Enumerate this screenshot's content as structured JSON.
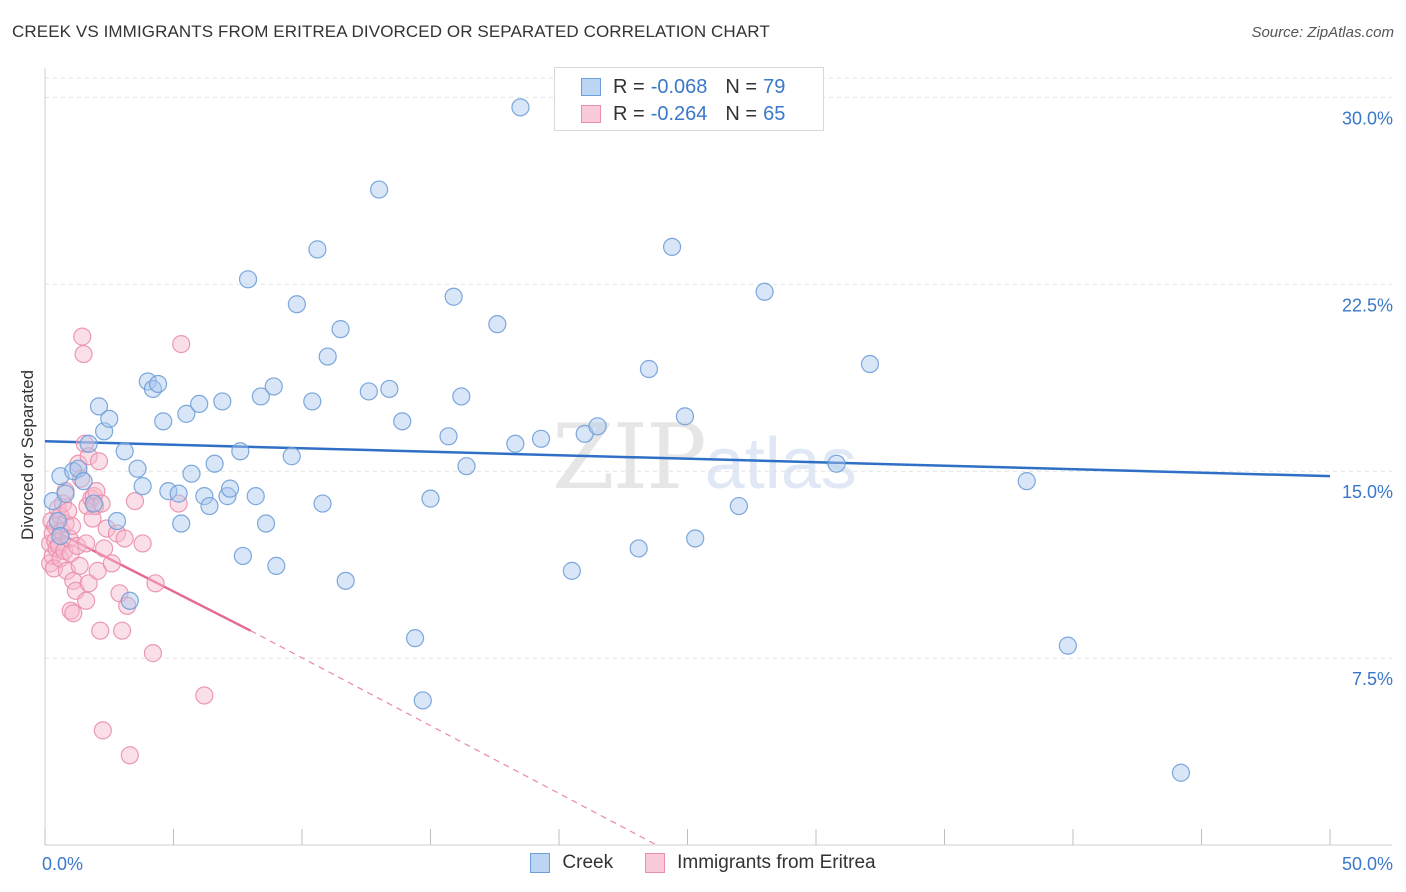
{
  "title": "CREEK VS IMMIGRANTS FROM ERITREA DIVORCED OR SEPARATED CORRELATION CHART",
  "source": "Source: ZipAtlas.com",
  "watermark": {
    "zip": "ZIP",
    "atlas": "atlas"
  },
  "legend": {
    "rows": [
      {
        "r_label": "R =",
        "r_value": "-0.068",
        "n_label": "N =",
        "n_value": "79"
      },
      {
        "r_label": "R =",
        "r_value": "-0.264",
        "n_label": "N =",
        "n_value": "65"
      }
    ]
  },
  "colors": {
    "creek_fill": "#a9c8ee",
    "creek_stroke": "#6f9fd8",
    "creek_line": "#2f6fc6",
    "eritrea_fill": "#f6b9cc",
    "eritrea_stroke": "#ea8fac",
    "eritrea_line": "#e46a93",
    "axis_text": "#3a78c9",
    "grid": "#e2e2e2"
  },
  "chart_data": {
    "type": "scatter",
    "title": "CREEK VS IMMIGRANTS FROM ERITREA DIVORCED OR SEPARATED CORRELATION CHART",
    "xlabel": "",
    "ylabel": "Divorced or Separated",
    "xlim": [
      0,
      50
    ],
    "ylim": [
      0,
      31.5
    ],
    "x_tick_labels": [
      "0.0%",
      "50.0%"
    ],
    "y_ticks": [
      7.5,
      15.0,
      22.5,
      30.0
    ],
    "y_tick_labels": [
      "7.5%",
      "15.0%",
      "22.5%",
      "30.0%"
    ],
    "legend_position": "bottom-center",
    "series": [
      {
        "name": "Creek",
        "r": -0.068,
        "n": 79,
        "trend": {
          "x0": 0,
          "y0": 16.2,
          "x1": 50,
          "y1": 14.8
        },
        "points": [
          [
            0.3,
            13.8
          ],
          [
            0.5,
            13.0
          ],
          [
            0.6,
            12.4
          ],
          [
            0.6,
            14.8
          ],
          [
            0.8,
            14.1
          ],
          [
            1.1,
            15.0
          ],
          [
            1.3,
            15.1
          ],
          [
            1.5,
            14.6
          ],
          [
            1.7,
            16.1
          ],
          [
            1.9,
            13.7
          ],
          [
            2.1,
            17.6
          ],
          [
            2.3,
            16.6
          ],
          [
            2.5,
            17.1
          ],
          [
            2.8,
            13.0
          ],
          [
            3.1,
            15.8
          ],
          [
            3.3,
            9.8
          ],
          [
            3.6,
            15.1
          ],
          [
            3.8,
            14.4
          ],
          [
            4.0,
            18.6
          ],
          [
            4.2,
            18.3
          ],
          [
            4.4,
            18.5
          ],
          [
            4.6,
            17.0
          ],
          [
            4.8,
            14.2
          ],
          [
            5.2,
            14.1
          ],
          [
            5.3,
            12.9
          ],
          [
            5.5,
            17.3
          ],
          [
            5.7,
            14.9
          ],
          [
            6.0,
            17.7
          ],
          [
            6.2,
            14.0
          ],
          [
            6.4,
            13.6
          ],
          [
            6.6,
            15.3
          ],
          [
            6.9,
            17.8
          ],
          [
            7.1,
            14.0
          ],
          [
            7.2,
            14.3
          ],
          [
            7.6,
            15.8
          ],
          [
            7.7,
            11.6
          ],
          [
            7.9,
            22.7
          ],
          [
            8.2,
            14.0
          ],
          [
            8.4,
            18.0
          ],
          [
            8.6,
            12.9
          ],
          [
            8.9,
            18.4
          ],
          [
            9.0,
            11.2
          ],
          [
            9.6,
            15.6
          ],
          [
            9.8,
            21.7
          ],
          [
            10.4,
            17.8
          ],
          [
            10.6,
            23.9
          ],
          [
            10.8,
            13.7
          ],
          [
            11.0,
            19.6
          ],
          [
            11.5,
            20.7
          ],
          [
            11.7,
            10.6
          ],
          [
            12.6,
            18.2
          ],
          [
            13.0,
            26.3
          ],
          [
            13.4,
            18.3
          ],
          [
            13.9,
            17.0
          ],
          [
            14.4,
            8.3
          ],
          [
            14.7,
            5.8
          ],
          [
            15.0,
            13.9
          ],
          [
            15.7,
            16.4
          ],
          [
            15.9,
            22.0
          ],
          [
            16.2,
            18.0
          ],
          [
            16.4,
            15.2
          ],
          [
            17.6,
            20.9
          ],
          [
            18.3,
            16.1
          ],
          [
            18.5,
            29.6
          ],
          [
            19.3,
            16.3
          ],
          [
            20.5,
            11.0
          ],
          [
            21.0,
            16.5
          ],
          [
            21.5,
            16.8
          ],
          [
            23.1,
            11.9
          ],
          [
            23.5,
            19.1
          ],
          [
            24.4,
            24.0
          ],
          [
            24.9,
            17.2
          ],
          [
            25.3,
            12.3
          ],
          [
            27.0,
            13.6
          ],
          [
            28.0,
            22.2
          ],
          [
            30.8,
            15.3
          ],
          [
            32.1,
            19.3
          ],
          [
            38.2,
            14.6
          ],
          [
            39.8,
            8.0
          ],
          [
            44.2,
            2.9
          ]
        ]
      },
      {
        "name": "Immigrants from Eritrea",
        "r": -0.264,
        "n": 65,
        "trend": {
          "x0": 0,
          "y0": 12.8,
          "x1": 8.0,
          "y1": 8.6,
          "dash_x1": 23.8,
          "dash_y1": 0
        },
        "points": [
          [
            0.2,
            11.3
          ],
          [
            0.2,
            12.1
          ],
          [
            0.25,
            13.0
          ],
          [
            0.3,
            11.6
          ],
          [
            0.3,
            12.5
          ],
          [
            0.35,
            11.1
          ],
          [
            0.4,
            12.2
          ],
          [
            0.4,
            12.8
          ],
          [
            0.45,
            11.9
          ],
          [
            0.5,
            13.5
          ],
          [
            0.55,
            12.0
          ],
          [
            0.6,
            11.5
          ],
          [
            0.6,
            13.2
          ],
          [
            0.65,
            12.6
          ],
          [
            0.7,
            13.7
          ],
          [
            0.75,
            11.8
          ],
          [
            0.8,
            12.9
          ],
          [
            0.8,
            14.2
          ],
          [
            0.85,
            11.0
          ],
          [
            0.9,
            13.4
          ],
          [
            0.95,
            12.3
          ],
          [
            1.0,
            9.4
          ],
          [
            1.0,
            11.7
          ],
          [
            1.05,
            12.8
          ],
          [
            1.1,
            10.6
          ],
          [
            1.1,
            9.3
          ],
          [
            1.2,
            10.2
          ],
          [
            1.25,
            12.0
          ],
          [
            1.3,
            15.3
          ],
          [
            1.35,
            11.2
          ],
          [
            1.4,
            14.7
          ],
          [
            1.45,
            20.4
          ],
          [
            1.5,
            19.7
          ],
          [
            1.55,
            16.1
          ],
          [
            1.6,
            12.1
          ],
          [
            1.6,
            9.8
          ],
          [
            1.65,
            13.6
          ],
          [
            1.7,
            15.6
          ],
          [
            1.7,
            10.5
          ],
          [
            1.8,
            13.9
          ],
          [
            1.85,
            13.1
          ],
          [
            1.9,
            14.0
          ],
          [
            1.95,
            13.6
          ],
          [
            2.0,
            14.2
          ],
          [
            2.05,
            11.0
          ],
          [
            2.1,
            15.4
          ],
          [
            2.15,
            8.6
          ],
          [
            2.2,
            13.7
          ],
          [
            2.25,
            4.6
          ],
          [
            2.3,
            11.9
          ],
          [
            2.4,
            12.7
          ],
          [
            2.6,
            11.3
          ],
          [
            2.8,
            12.5
          ],
          [
            2.9,
            10.1
          ],
          [
            3.0,
            8.6
          ],
          [
            3.1,
            12.3
          ],
          [
            3.2,
            9.6
          ],
          [
            3.3,
            3.6
          ],
          [
            3.5,
            13.8
          ],
          [
            3.8,
            12.1
          ],
          [
            4.2,
            7.7
          ],
          [
            4.3,
            10.5
          ],
          [
            5.2,
            13.7
          ],
          [
            5.3,
            20.1
          ],
          [
            6.2,
            6.0
          ]
        ]
      }
    ]
  }
}
